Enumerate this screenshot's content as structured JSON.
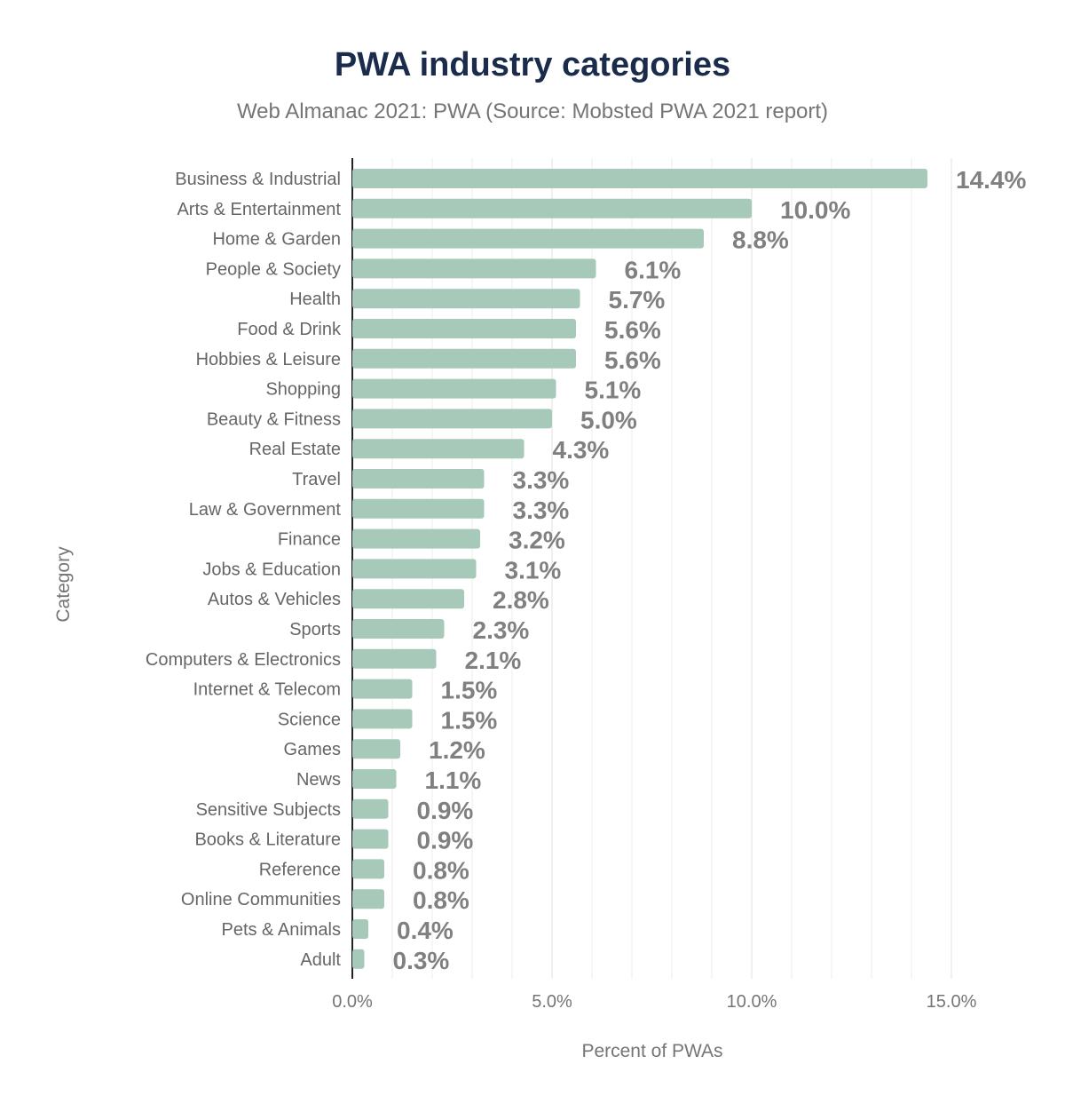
{
  "chart_data": {
    "type": "bar",
    "orientation": "horizontal",
    "title": "PWA industry categories",
    "subtitle": "Web Almanac 2021: PWA (Source: Mobsted PWA 2021 report)",
    "xlabel": "Percent of PWAs",
    "ylabel": "Category",
    "xlim": [
      0,
      15.5
    ],
    "xticks": [
      0,
      5,
      10,
      15
    ],
    "xtick_labels": [
      "0.0%",
      "5.0%",
      "10.0%",
      "15.0%"
    ],
    "grid": true,
    "bar_color": "#a7c9b9",
    "categories": [
      "Business & Industrial",
      "Arts & Entertainment",
      "Home & Garden",
      "People & Society",
      "Health",
      "Food & Drink",
      "Hobbies & Leisure",
      "Shopping",
      "Beauty & Fitness",
      "Real Estate",
      "Travel",
      "Law & Government",
      "Finance",
      "Jobs & Education",
      "Autos & Vehicles",
      "Sports",
      "Computers & Electronics",
      "Internet & Telecom",
      "Science",
      "Games",
      "News",
      "Sensitive Subjects",
      "Books & Literature",
      "Reference",
      "Online Communities",
      "Pets & Animals",
      "Adult"
    ],
    "values": [
      14.4,
      10.0,
      8.8,
      6.1,
      5.7,
      5.6,
      5.6,
      5.1,
      5.0,
      4.3,
      3.3,
      3.3,
      3.2,
      3.1,
      2.8,
      2.3,
      2.1,
      1.5,
      1.5,
      1.2,
      1.1,
      0.9,
      0.9,
      0.8,
      0.8,
      0.4,
      0.3
    ],
    "labels": [
      "14.4%",
      "10.0%",
      "8.8%",
      "6.1%",
      "5.7%",
      "5.6%",
      "5.6%",
      "5.1%",
      "5.0%",
      "4.3%",
      "3.3%",
      "3.3%",
      "3.2%",
      "3.1%",
      "2.8%",
      "2.3%",
      "2.1%",
      "1.5%",
      "1.5%",
      "1.2%",
      "1.1%",
      "0.9%",
      "0.9%",
      "0.8%",
      "0.8%",
      "0.4%",
      "0.3%"
    ]
  }
}
